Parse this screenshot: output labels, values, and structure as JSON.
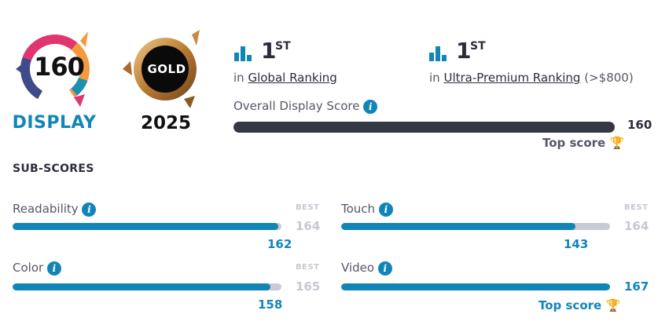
{
  "badge": {
    "score": "160",
    "label": "DISPLAY"
  },
  "gold": {
    "label": "GOLD",
    "year": "2025"
  },
  "rankings": [
    {
      "rank": "1",
      "suffix": "ST",
      "prefix": "in",
      "link": "Global Ranking",
      "note": ""
    },
    {
      "rank": "1",
      "suffix": "ST",
      "prefix": "in",
      "link": "Ultra-Premium Ranking",
      "note": "(>$800)"
    }
  ],
  "overall": {
    "label": "Overall Display Score",
    "value": "160",
    "fill_percent": 100,
    "top_label": "Top score"
  },
  "subscores_title": "SUB-SCORES",
  "subscores": [
    {
      "label": "Readability",
      "value": "162",
      "best_label": "BEST",
      "best": "164",
      "fill_percent": 98.8,
      "top_label": ""
    },
    {
      "label": "Touch",
      "value": "143",
      "best_label": "BEST",
      "best": "164",
      "fill_percent": 87.2,
      "top_label": ""
    },
    {
      "label": "Color",
      "value": "158",
      "best_label": "BEST",
      "best": "165",
      "fill_percent": 95.8,
      "top_label": ""
    },
    {
      "label": "Video",
      "value": "167",
      "best_label": "",
      "best": "",
      "fill_percent": 100,
      "top_label": "Top score"
    }
  ],
  "colors": {
    "accent": "#1285b8",
    "dark_bar": "#343844",
    "track": "#c8cad4",
    "best_gray": "#c6c8d2",
    "trophy": "#f5a623"
  }
}
